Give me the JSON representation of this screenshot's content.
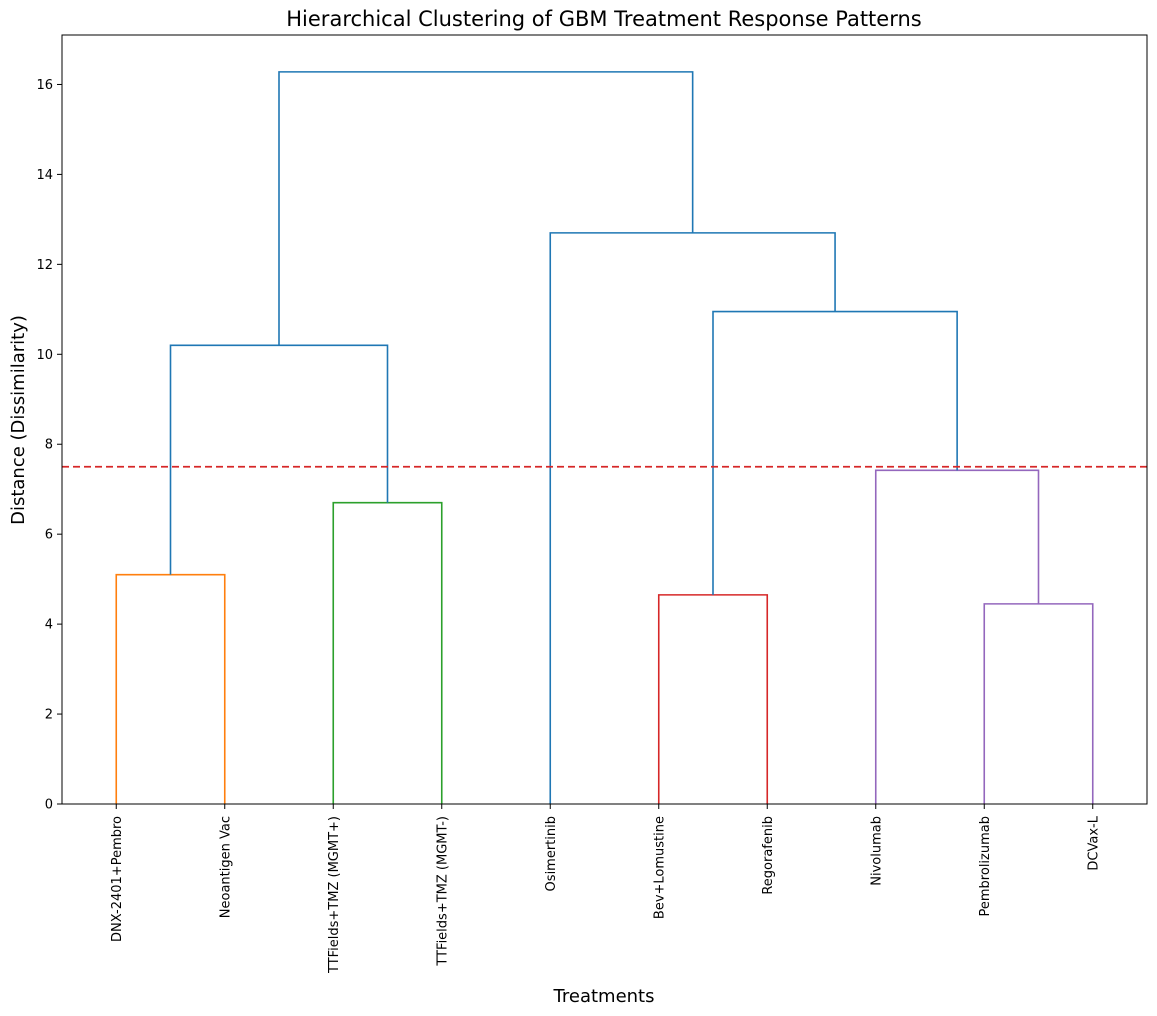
{
  "chart_data": {
    "type": "dendrogram",
    "title": "Hierarchical Clustering of GBM Treatment Response Patterns",
    "xlabel": "Treatments",
    "ylabel": "Distance (Dissimilarity)",
    "ylim": [
      0,
      17.1
    ],
    "yticks": [
      0,
      2,
      4,
      6,
      8,
      10,
      12,
      14,
      16
    ],
    "leaves": [
      "DNX-2401+Pembro",
      "Neoantigen Vac",
      "TTFields+TMZ (MGMT+)",
      "TTFields+TMZ (MGMT-)",
      "Osimertinib",
      "Bev+Lomustine",
      "Regorafenib",
      "Nivolumab",
      "Pembrolizumab",
      "DCVax-L"
    ],
    "threshold": {
      "value": 7.5,
      "color": "#d62728",
      "style": "dashed"
    },
    "links": [
      {
        "left": "leaf:DNX-2401+Pembro",
        "right": "leaf:Neoantigen Vac",
        "height": 5.1,
        "color": "#ff7f0e",
        "id": "c1"
      },
      {
        "left": "leaf:TTFields+TMZ (MGMT+)",
        "right": "leaf:TTFields+TMZ (MGMT-)",
        "height": 6.7,
        "color": "#2ca02c",
        "id": "c2"
      },
      {
        "left": "leaf:Bev+Lomustine",
        "right": "leaf:Regorafenib",
        "height": 4.65,
        "color": "#d62728",
        "id": "c3"
      },
      {
        "left": "leaf:Pembrolizumab",
        "right": "leaf:DCVax-L",
        "height": 4.45,
        "color": "#9467bd",
        "id": "c4"
      },
      {
        "left": "leaf:Nivolumab",
        "right": "node:c4",
        "height": 7.42,
        "color": "#9467bd",
        "id": "c5"
      },
      {
        "left": "node:c1",
        "right": "node:c2",
        "height": 10.2,
        "color": "#1f77b4",
        "id": "c6"
      },
      {
        "left": "node:c3",
        "right": "node:c5",
        "height": 10.95,
        "color": "#1f77b4",
        "id": "c7"
      },
      {
        "left": "leaf:Osimertinib",
        "right": "node:c7",
        "height": 12.7,
        "color": "#1f77b4",
        "id": "c8"
      },
      {
        "left": "node:c6",
        "right": "node:c8",
        "height": 16.28,
        "color": "#1f77b4",
        "id": "c9"
      }
    ],
    "grid": false,
    "legend": "none"
  }
}
